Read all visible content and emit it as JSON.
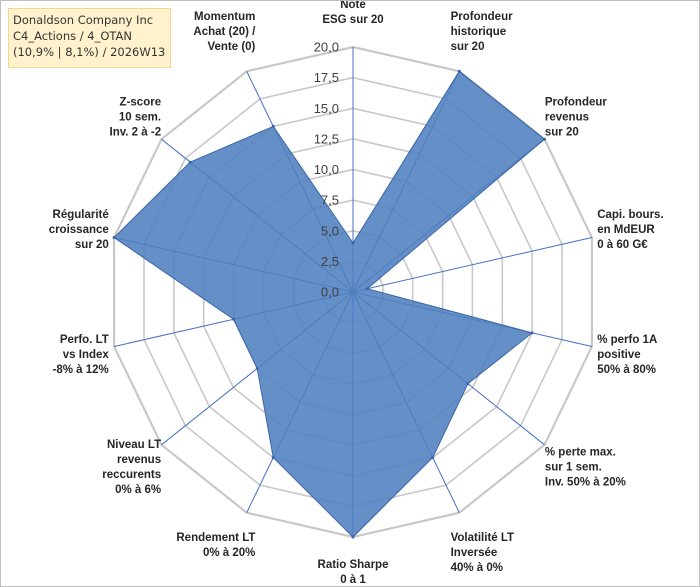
{
  "chart_data": {
    "type": "radar",
    "title_lines": [
      "Donaldson Company Inc",
      "C4_Actions / 4_OTAN",
      "(10,9% | 8,1%) / 2026W13"
    ],
    "scale": {
      "min": 0,
      "max": 20,
      "step": 2.5
    },
    "tick_labels": [
      "0,0",
      "2,5",
      "5,0",
      "7,5",
      "10,0",
      "12,5",
      "15,0",
      "17,5",
      "20,0"
    ],
    "axes": [
      {
        "label": [
          "Note",
          "ESG sur 20"
        ],
        "value": 4
      },
      {
        "label": [
          "Profondeur",
          "historique",
          "sur 20"
        ],
        "value": 20
      },
      {
        "label": [
          "Profondeur",
          "revenus",
          "sur 20"
        ],
        "value": 20
      },
      {
        "label": [
          "Capi. bours.",
          "en MdEUR",
          "0 à 60 G€"
        ],
        "value": 1.2
      },
      {
        "label": [
          "% perfo 1A",
          "positive",
          "50% à 80%"
        ],
        "value": 15
      },
      {
        "label": [
          "% perte max.",
          "sur 1 sem.",
          "Inv. 50% à 20%"
        ],
        "value": 12
      },
      {
        "label": [
          "Volatilité LT",
          "Inversée",
          "40% à 0%"
        ],
        "value": 15
      },
      {
        "label": [
          "Ratio Sharpe",
          "0 à 1"
        ],
        "value": 20
      },
      {
        "label": [
          "Rendement LT",
          "0% à 20%"
        ],
        "value": 15
      },
      {
        "label": [
          "Niveau LT",
          "revenus",
          "reccurents",
          "0% à 6%"
        ],
        "value": 10
      },
      {
        "label": [
          "Perfo. LT",
          "vs Index",
          "-8% à 12%"
        ],
        "value": 10
      },
      {
        "label": [
          "Régularité",
          "croissance",
          "sur 20"
        ],
        "value": 20
      },
      {
        "label": [
          "Z-score",
          "10 sem.",
          "Inv. 2 à -2"
        ],
        "value": 17
      },
      {
        "label": [
          "Momentum",
          "Achat (20) /",
          "Vente (0)"
        ],
        "value": 15
      }
    ],
    "series": [
      {
        "name": "Donaldson Company Inc",
        "color": "#4f7fbf"
      }
    ]
  },
  "colors": {
    "fill": "#4f7fbf",
    "stroke": "#3a66a8",
    "grid": "#c8c8c8",
    "spoke": "#4472c4"
  }
}
